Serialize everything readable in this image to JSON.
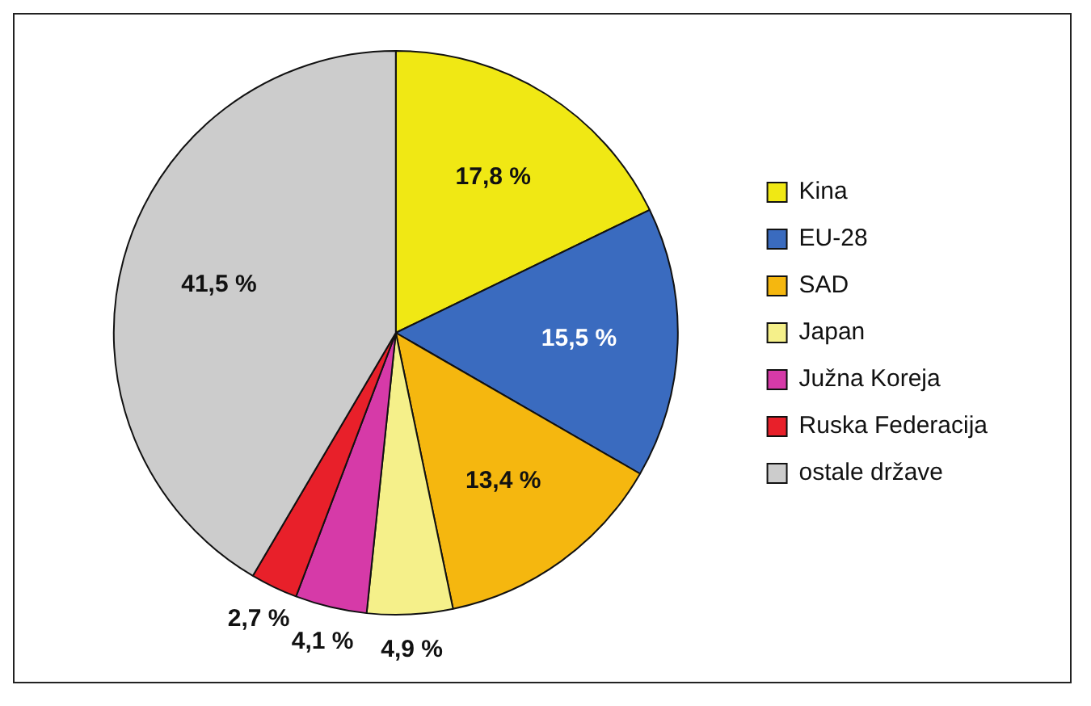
{
  "chart_data": {
    "type": "pie",
    "categories": [
      "Kina",
      "EU-28",
      "SAD",
      "Japan",
      "Južna Koreja",
      "Ruska Federacija",
      "ostale države"
    ],
    "values": [
      17.8,
      15.5,
      13.4,
      4.9,
      4.1,
      2.7,
      41.5
    ],
    "colors": [
      "#f0e814",
      "#3a6bbf",
      "#f5b70f",
      "#f5f08a",
      "#d63aa8",
      "#e8202a",
      "#cccccc"
    ],
    "value_labels": [
      "17,8 %",
      "15,5 %",
      "13,4 %",
      "4,9 %",
      "4,1 %",
      "2,7 %",
      "41,5 %"
    ],
    "legend": "right"
  }
}
